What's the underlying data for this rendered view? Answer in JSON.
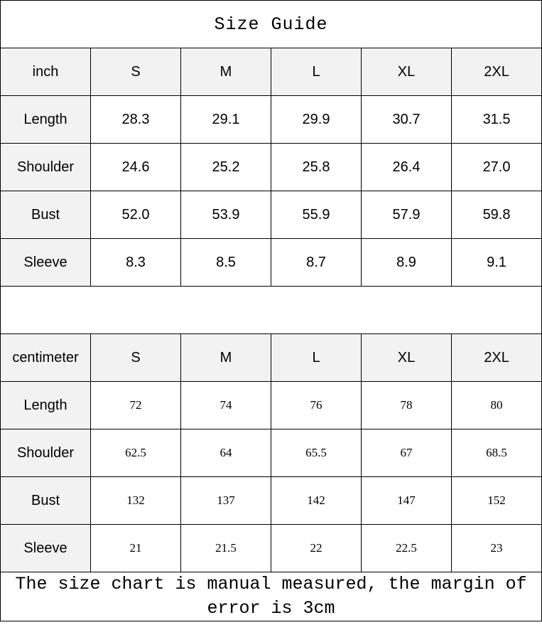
{
  "title": "Size Guide",
  "inch_table": {
    "unit": "inch",
    "sizes": [
      "S",
      "M",
      "L",
      "XL",
      "2XL"
    ],
    "rows": [
      {
        "label": "Length",
        "values": [
          "28.3",
          "29.1",
          "29.9",
          "30.7",
          "31.5"
        ]
      },
      {
        "label": "Shoulder",
        "values": [
          "24.6",
          "25.2",
          "25.8",
          "26.4",
          "27.0"
        ]
      },
      {
        "label": "Bust",
        "values": [
          "52.0",
          "53.9",
          "55.9",
          "57.9",
          "59.8"
        ]
      },
      {
        "label": "Sleeve",
        "values": [
          "8.3",
          "8.5",
          "8.7",
          "8.9",
          "9.1"
        ]
      }
    ]
  },
  "cm_table": {
    "unit": "centimeter",
    "sizes": [
      "S",
      "M",
      "L",
      "XL",
      "2XL"
    ],
    "rows": [
      {
        "label": "Length",
        "values": [
          "72",
          "74",
          "76",
          "78",
          "80"
        ]
      },
      {
        "label": "Shoulder",
        "values": [
          "62.5",
          "64",
          "65.5",
          "67",
          "68.5"
        ]
      },
      {
        "label": "Bust",
        "values": [
          "132",
          "137",
          "142",
          "147",
          "152"
        ]
      },
      {
        "label": "Sleeve",
        "values": [
          "21",
          "21.5",
          "22",
          "22.5",
          "23"
        ]
      }
    ]
  },
  "footnote": "The size chart is manual measured, the margin of error is 3cm",
  "colors": {
    "header_bg": "#f2f2f2",
    "border": "#000000"
  }
}
